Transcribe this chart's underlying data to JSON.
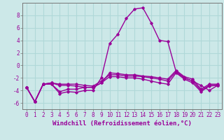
{
  "xlabel": "Windchill (Refroidissement éolien,°C)",
  "x": [
    0,
    1,
    2,
    3,
    4,
    5,
    6,
    7,
    8,
    9,
    10,
    11,
    12,
    13,
    14,
    15,
    16,
    17,
    18,
    19,
    20,
    21,
    22,
    23
  ],
  "lines": [
    [
      -3.5,
      -5.8,
      -3.0,
      -2.8,
      -3.0,
      -3.0,
      -3.0,
      -3.2,
      -3.3,
      -2.5,
      -1.5,
      -1.5,
      -1.7,
      -1.7,
      -1.8,
      -2.0,
      -2.2,
      -2.5,
      -1.0,
      -2.0,
      -2.5,
      -4.0,
      -3.2,
      -3.2
    ],
    [
      -3.5,
      -5.8,
      -3.0,
      -2.8,
      -3.2,
      -3.2,
      -3.3,
      -3.5,
      -3.5,
      -2.8,
      -1.2,
      -1.3,
      -1.5,
      -1.5,
      -1.7,
      -1.8,
      -2.0,
      -2.2,
      -0.8,
      -1.8,
      -2.2,
      -3.8,
      -3.0,
      -3.0
    ],
    [
      -3.5,
      -5.8,
      -3.0,
      -3.0,
      -4.2,
      -3.8,
      -3.8,
      -3.5,
      -3.5,
      -2.8,
      -1.8,
      -1.8,
      -2.0,
      -2.0,
      -2.2,
      -2.5,
      -2.8,
      -3.0,
      -1.2,
      -2.2,
      -2.8,
      -4.2,
      -3.3,
      -3.2
    ],
    [
      -3.5,
      -5.8,
      -3.0,
      -3.0,
      -4.5,
      -4.2,
      -4.3,
      -4.0,
      -4.0,
      -2.0,
      3.5,
      5.0,
      7.5,
      9.0,
      9.2,
      6.8,
      4.0,
      3.8,
      -1.0,
      -2.0,
      -2.5,
      -3.2,
      -4.0,
      -3.2
    ]
  ],
  "line_color": "#990099",
  "bg_color": "#cce8e8",
  "grid_color": "#b0d8d8",
  "ylim": [
    -7,
    10
  ],
  "yticks": [
    -6,
    -4,
    -2,
    0,
    2,
    4,
    6,
    8
  ],
  "xticks": [
    0,
    1,
    2,
    3,
    4,
    5,
    6,
    7,
    8,
    9,
    10,
    11,
    12,
    13,
    14,
    15,
    16,
    17,
    18,
    19,
    20,
    21,
    22,
    23
  ],
  "xlabel_fontsize": 6.5,
  "tick_fontsize": 5.5,
  "line_width": 1.0,
  "marker": "D",
  "marker_size": 1.8
}
